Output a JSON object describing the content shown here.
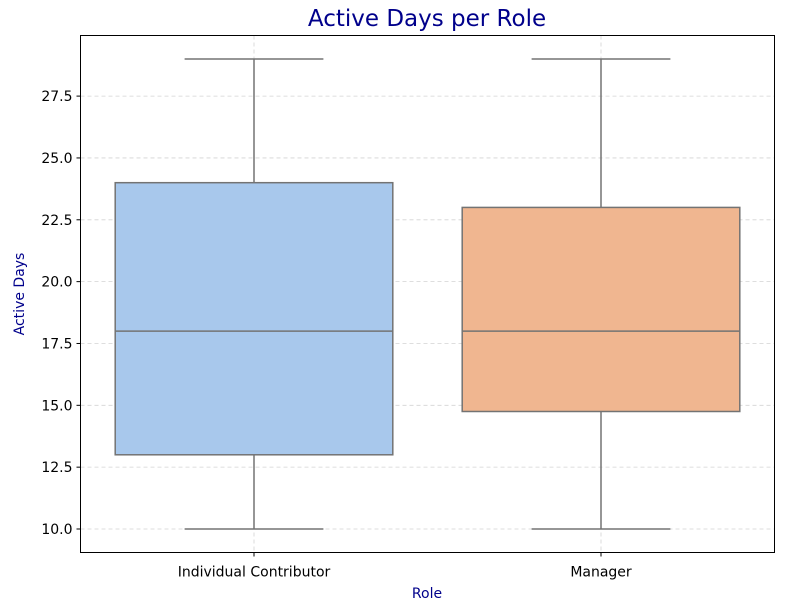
{
  "chart_data": {
    "type": "box",
    "title": "Active Days per Role",
    "xlabel": "Role",
    "ylabel": "Active Days",
    "categories": [
      "Individual Contributor",
      "Manager"
    ],
    "boxes": [
      {
        "name": "Individual Contributor",
        "min": 10.0,
        "q1": 13.0,
        "median": 18.0,
        "q3": 24.0,
        "max": 29.0,
        "color": "#a8c8ec"
      },
      {
        "name": "Manager",
        "min": 10.0,
        "q1": 14.75,
        "median": 18.0,
        "q3": 23.0,
        "max": 29.0,
        "color": "#f0b690"
      }
    ],
    "y_ticks": [
      10.0,
      12.5,
      15.0,
      17.5,
      20.0,
      22.5,
      25.0,
      27.5
    ],
    "y_tick_labels": [
      "10.0",
      "12.5",
      "15.0",
      "17.5",
      "20.0",
      "22.5",
      "25.0",
      "27.5"
    ],
    "ylim": [
      9.05,
      29.95
    ],
    "grid": true,
    "colors": {
      "title": "#00008b",
      "axis_label": "#00008b",
      "box_edge": "#737373",
      "grid": "#d3d3d3"
    }
  }
}
